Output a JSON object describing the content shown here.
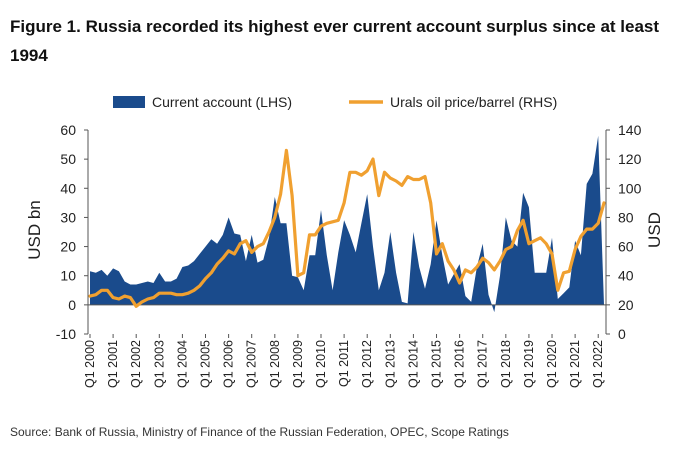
{
  "title": "Figure 1. Russia recorded its highest ever current account surplus since at least 1994",
  "source": "Source: Bank of Russia, Ministry of Finance of the Russian Federation, OPEC, Scope Ratings",
  "chart_data": {
    "type": "area",
    "title": "Figure 1. Russia recorded its highest ever current account surplus since at least 1994",
    "ylabel_left": "USD bn",
    "ylabel_right": "USD",
    "ylim_left": [
      -10,
      60
    ],
    "ylim_right": [
      0,
      140
    ],
    "yticks_left": [
      -10,
      0,
      10,
      20,
      30,
      40,
      50,
      60
    ],
    "yticks_right": [
      0,
      20,
      40,
      60,
      80,
      100,
      120,
      140
    ],
    "xrange": [
      2000,
      2022.25
    ],
    "xticks": [
      {
        "label": "Q1 2000",
        "t": 2000
      },
      {
        "label": "Q1 2001",
        "t": 2001
      },
      {
        "label": "Q1 2002",
        "t": 2002
      },
      {
        "label": "Q1 2003",
        "t": 2003
      },
      {
        "label": "Q1 2004",
        "t": 2004
      },
      {
        "label": "Q1 2005",
        "t": 2005
      },
      {
        "label": "Q1 2006",
        "t": 2006
      },
      {
        "label": "Q1 2007",
        "t": 2007
      },
      {
        "label": "Q1 2008",
        "t": 2008
      },
      {
        "label": "Q1 2009",
        "t": 2009
      },
      {
        "label": "Q1 2010",
        "t": 2010
      },
      {
        "label": "Q1 2011",
        "t": 2011
      },
      {
        "label": "Q1 2012",
        "t": 2012
      },
      {
        "label": "Q1 2013",
        "t": 2013
      },
      {
        "label": "Q1 2014",
        "t": 2014
      },
      {
        "label": "Q1 2015",
        "t": 2015
      },
      {
        "label": "Q1 2016",
        "t": 2016
      },
      {
        "label": "Q1 2017",
        "t": 2017
      },
      {
        "label": "Q1 2018",
        "t": 2018
      },
      {
        "label": "Q1 2019",
        "t": 2019
      },
      {
        "label": "Q1 2020",
        "t": 2020
      },
      {
        "label": "Q1 2021",
        "t": 2021
      },
      {
        "label": "Q1 2022",
        "t": 2022
      }
    ],
    "legend_placement": "top",
    "grid": false,
    "series": [
      {
        "name": "Current account (LHS)",
        "axis": "left",
        "kind": "area",
        "color": "#1a4b8c",
        "points": [
          [
            2000.0,
            11.5
          ],
          [
            2000.25,
            11
          ],
          [
            2000.5,
            12
          ],
          [
            2000.75,
            10
          ],
          [
            2001.0,
            12.5
          ],
          [
            2001.25,
            11.5
          ],
          [
            2001.5,
            8
          ],
          [
            2001.75,
            7
          ],
          [
            2002.0,
            7
          ],
          [
            2002.25,
            7.5
          ],
          [
            2002.5,
            8
          ],
          [
            2002.75,
            7.5
          ],
          [
            2003.0,
            11
          ],
          [
            2003.25,
            8
          ],
          [
            2003.5,
            8
          ],
          [
            2003.75,
            9
          ],
          [
            2004.0,
            13
          ],
          [
            2004.25,
            13.5
          ],
          [
            2004.5,
            15
          ],
          [
            2004.75,
            17.5
          ],
          [
            2005.0,
            20
          ],
          [
            2005.25,
            22.5
          ],
          [
            2005.5,
            21
          ],
          [
            2005.75,
            24
          ],
          [
            2006.0,
            30
          ],
          [
            2006.25,
            24.5
          ],
          [
            2006.5,
            24
          ],
          [
            2006.75,
            15
          ],
          [
            2007.0,
            24
          ],
          [
            2007.25,
            14.5
          ],
          [
            2007.5,
            15.5
          ],
          [
            2007.75,
            23
          ],
          [
            2008.0,
            37
          ],
          [
            2008.25,
            28
          ],
          [
            2008.5,
            28
          ],
          [
            2008.75,
            10
          ],
          [
            2009.0,
            9.5
          ],
          [
            2009.25,
            5
          ],
          [
            2009.5,
            17
          ],
          [
            2009.75,
            17
          ],
          [
            2010.0,
            32.5
          ],
          [
            2010.25,
            17
          ],
          [
            2010.5,
            5
          ],
          [
            2010.75,
            18
          ],
          [
            2011.0,
            29
          ],
          [
            2011.25,
            24
          ],
          [
            2011.5,
            18
          ],
          [
            2011.75,
            28
          ],
          [
            2012.0,
            38
          ],
          [
            2012.25,
            20
          ],
          [
            2012.5,
            5
          ],
          [
            2012.75,
            11
          ],
          [
            2013.0,
            25
          ],
          [
            2013.25,
            11
          ],
          [
            2013.5,
            1
          ],
          [
            2013.75,
            0.5
          ],
          [
            2014.0,
            25
          ],
          [
            2014.25,
            13
          ],
          [
            2014.5,
            5.5
          ],
          [
            2014.75,
            14
          ],
          [
            2015.0,
            29
          ],
          [
            2015.25,
            17
          ],
          [
            2015.5,
            7
          ],
          [
            2015.75,
            10.5
          ],
          [
            2016.0,
            14
          ],
          [
            2016.25,
            3
          ],
          [
            2016.5,
            1
          ],
          [
            2016.75,
            13
          ],
          [
            2017.0,
            21
          ],
          [
            2017.25,
            3.5
          ],
          [
            2017.5,
            -2.5
          ],
          [
            2017.75,
            10
          ],
          [
            2018.0,
            30
          ],
          [
            2018.25,
            22
          ],
          [
            2018.5,
            20
          ],
          [
            2018.75,
            38.5
          ],
          [
            2019.0,
            33.5
          ],
          [
            2019.25,
            11
          ],
          [
            2019.5,
            11
          ],
          [
            2019.75,
            11
          ],
          [
            2020.0,
            23
          ],
          [
            2020.25,
            2
          ],
          [
            2020.5,
            4
          ],
          [
            2020.75,
            6
          ],
          [
            2021.0,
            22
          ],
          [
            2021.25,
            17
          ],
          [
            2021.5,
            41.5
          ],
          [
            2021.75,
            45
          ],
          [
            2022.0,
            58
          ],
          [
            2022.25,
            0
          ]
        ]
      },
      {
        "name": "Urals oil price/barrel (RHS)",
        "axis": "right",
        "kind": "line",
        "color": "#f0a030",
        "points": [
          [
            2000.0,
            26
          ],
          [
            2000.25,
            27
          ],
          [
            2000.5,
            30
          ],
          [
            2000.75,
            30
          ],
          [
            2001.0,
            25
          ],
          [
            2001.25,
            24
          ],
          [
            2001.5,
            26
          ],
          [
            2001.75,
            25
          ],
          [
            2002.0,
            19
          ],
          [
            2002.25,
            22
          ],
          [
            2002.5,
            24
          ],
          [
            2002.75,
            25
          ],
          [
            2003.0,
            28
          ],
          [
            2003.25,
            28
          ],
          [
            2003.5,
            28
          ],
          [
            2003.75,
            27
          ],
          [
            2004.0,
            27
          ],
          [
            2004.25,
            28
          ],
          [
            2004.5,
            30
          ],
          [
            2004.75,
            33
          ],
          [
            2005.0,
            38
          ],
          [
            2005.25,
            42
          ],
          [
            2005.5,
            48
          ],
          [
            2005.75,
            52
          ],
          [
            2006.0,
            57
          ],
          [
            2006.25,
            55
          ],
          [
            2006.5,
            62
          ],
          [
            2006.75,
            64
          ],
          [
            2007.0,
            56
          ],
          [
            2007.25,
            60
          ],
          [
            2007.5,
            62
          ],
          [
            2007.75,
            70
          ],
          [
            2008.0,
            80
          ],
          [
            2008.25,
            96
          ],
          [
            2008.5,
            126
          ],
          [
            2008.75,
            95
          ],
          [
            2009.0,
            40
          ],
          [
            2009.25,
            42
          ],
          [
            2009.5,
            68
          ],
          [
            2009.75,
            68
          ],
          [
            2010.0,
            74
          ],
          [
            2010.25,
            76
          ],
          [
            2010.5,
            77
          ],
          [
            2010.75,
            78
          ],
          [
            2011.0,
            90
          ],
          [
            2011.25,
            111
          ],
          [
            2011.5,
            111
          ],
          [
            2011.75,
            109
          ],
          [
            2012.0,
            112
          ],
          [
            2012.25,
            120
          ],
          [
            2012.5,
            95
          ],
          [
            2012.75,
            111
          ],
          [
            2013.0,
            107
          ],
          [
            2013.25,
            105
          ],
          [
            2013.5,
            102
          ],
          [
            2013.75,
            108
          ],
          [
            2014.0,
            106
          ],
          [
            2014.25,
            106
          ],
          [
            2014.5,
            108
          ],
          [
            2014.75,
            90
          ],
          [
            2015.0,
            55
          ],
          [
            2015.25,
            62
          ],
          [
            2015.5,
            50
          ],
          [
            2015.75,
            44
          ],
          [
            2016.0,
            35
          ],
          [
            2016.25,
            44
          ],
          [
            2016.5,
            42
          ],
          [
            2016.75,
            46
          ],
          [
            2017.0,
            52
          ],
          [
            2017.25,
            49
          ],
          [
            2017.5,
            44
          ],
          [
            2017.75,
            50
          ],
          [
            2018.0,
            58
          ],
          [
            2018.25,
            60
          ],
          [
            2018.5,
            71
          ],
          [
            2018.75,
            78
          ],
          [
            2019.0,
            62
          ],
          [
            2019.25,
            64
          ],
          [
            2019.5,
            66
          ],
          [
            2019.75,
            62
          ],
          [
            2020.0,
            55
          ],
          [
            2020.25,
            30
          ],
          [
            2020.5,
            42
          ],
          [
            2020.75,
            43
          ],
          [
            2021.0,
            58
          ],
          [
            2021.25,
            67
          ],
          [
            2021.5,
            72
          ],
          [
            2021.75,
            72
          ],
          [
            2022.0,
            76
          ],
          [
            2022.25,
            90
          ]
        ]
      }
    ]
  }
}
